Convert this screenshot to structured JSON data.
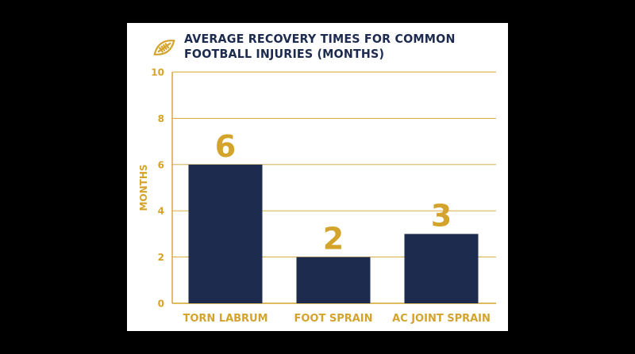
{
  "title": "AVERAGE RECOVERY TIMES FOR COMMON FOOTBALL INJURIES (MONTHS)",
  "icon": "football-icon",
  "colors": {
    "background": "#000000",
    "card": "#ffffff",
    "bar": "#1c2b4e",
    "accent": "#d4a32c",
    "title": "#1c2b4e"
  },
  "chart_data": {
    "type": "bar",
    "categories": [
      "TORN LABRUM",
      "FOOT SPRAIN",
      "AC JOINT SPRAIN"
    ],
    "values": [
      6,
      2,
      3
    ],
    "data_labels": [
      "6",
      "2",
      "3"
    ],
    "ylabel": "MONTHS",
    "xlabel": "",
    "ylim": [
      0,
      10
    ],
    "yticks": [
      0,
      2,
      4,
      6,
      8,
      10
    ],
    "grid": true
  }
}
